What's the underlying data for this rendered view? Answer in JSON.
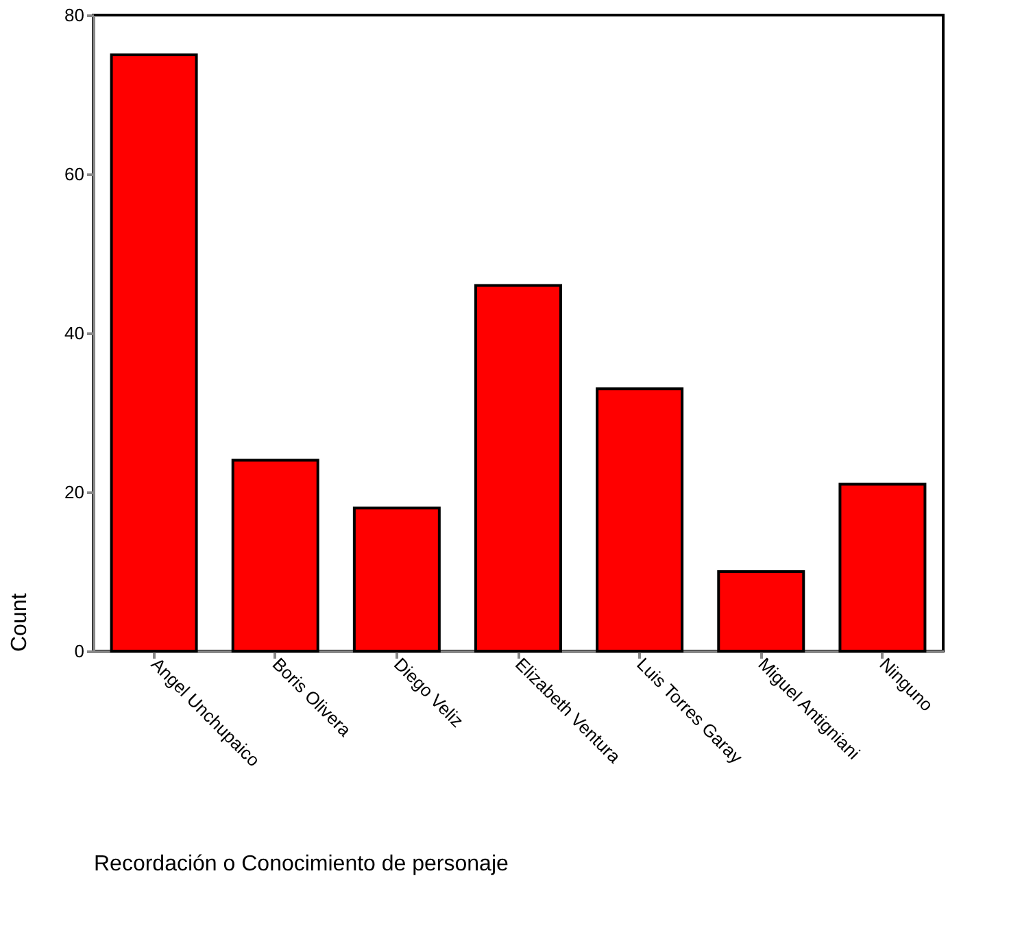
{
  "chart_data": {
    "type": "bar",
    "categories": [
      "Angel Unchupaico",
      "Boris Olivera",
      "Diego Veliz",
      "Elizabeth Ventura",
      "Luis Torres Garay",
      "Miguel Antigniani",
      "Ninguno"
    ],
    "values": [
      75,
      24,
      18,
      46,
      33,
      10,
      21
    ],
    "color": "#ff0000",
    "xlabel": "Recordación o Conocimiento de personaje",
    "ylabel": "Count",
    "ylim": [
      0,
      80
    ],
    "yticks": [
      0,
      20,
      40,
      60,
      80
    ],
    "grid": false
  }
}
